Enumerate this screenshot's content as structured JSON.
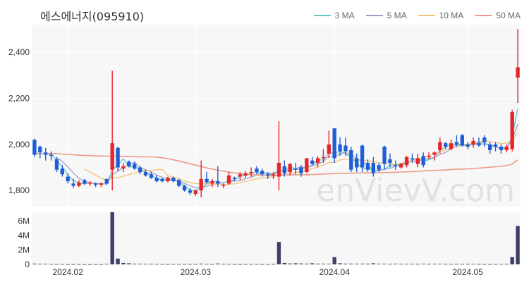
{
  "title": "에스에너지(095910)",
  "watermark": "enVievV.com",
  "legend": [
    {
      "label": "3 MA",
      "color": "#5ec8c8"
    },
    {
      "label": "5 MA",
      "color": "#a89ac8"
    },
    {
      "label": "10 MA",
      "color": "#f2c27a"
    },
    {
      "label": "50 MA",
      "color": "#ee9a86"
    }
  ],
  "colors": {
    "up": "#e8242b",
    "down": "#1e5fd6",
    "volume": "#3d3f66",
    "panel_bg": "#f7f7f7"
  },
  "chart_data": {
    "type": "candlestick",
    "price_axis": {
      "ticks": [
        1800,
        2000,
        2200,
        2400
      ],
      "tick_labels": [
        "1,800",
        "2,000",
        "2,200",
        "2,400"
      ],
      "ylim": [
        1730,
        2520
      ]
    },
    "volume_axis": {
      "ticks": [
        0,
        2000000,
        4000000,
        6000000
      ],
      "tick_labels": [
        "0",
        "2M",
        "4M",
        "6M"
      ],
      "ylim": [
        0,
        7300000
      ]
    },
    "x_axis": {
      "tick_labels": [
        "2024.02",
        "2024.03",
        "2024.04",
        "2024.05"
      ],
      "tick_index": [
        6,
        29,
        54,
        78
      ]
    },
    "candles": [
      [
        2020,
        2025,
        1945,
        1955
      ],
      [
        1990,
        1995,
        1940,
        1965
      ],
      [
        1965,
        1985,
        1930,
        1955
      ],
      [
        1955,
        1970,
        1930,
        1950
      ],
      [
        1935,
        1945,
        1880,
        1890
      ],
      [
        1895,
        1910,
        1860,
        1870
      ],
      [
        1860,
        1875,
        1830,
        1840
      ],
      [
        1830,
        1850,
        1810,
        1820
      ],
      [
        1820,
        1845,
        1815,
        1835
      ],
      [
        1845,
        1850,
        1825,
        1830
      ],
      [
        1830,
        1840,
        1820,
        1835
      ],
      [
        1830,
        1835,
        1815,
        1825
      ],
      [
        1825,
        1835,
        1815,
        1830
      ],
      [
        1850,
        1850,
        1825,
        1830
      ],
      [
        1890,
        2320,
        1800,
        2005
      ],
      [
        1985,
        1990,
        1885,
        1900
      ],
      [
        1895,
        1920,
        1880,
        1905
      ],
      [
        1925,
        1930,
        1900,
        1905
      ],
      [
        1915,
        1925,
        1890,
        1895
      ],
      [
        1900,
        1905,
        1870,
        1880
      ],
      [
        1880,
        1890,
        1860,
        1865
      ],
      [
        1870,
        1880,
        1850,
        1855
      ],
      [
        1855,
        1865,
        1835,
        1840
      ],
      [
        1850,
        1855,
        1835,
        1840
      ],
      [
        1840,
        1860,
        1835,
        1855
      ],
      [
        1855,
        1860,
        1835,
        1840
      ],
      [
        1845,
        1850,
        1815,
        1820
      ],
      [
        1820,
        1825,
        1795,
        1800
      ],
      [
        1800,
        1810,
        1780,
        1790
      ],
      [
        1785,
        1805,
        1775,
        1800
      ],
      [
        1800,
        1930,
        1770,
        1850
      ],
      [
        1850,
        1880,
        1830,
        1835
      ],
      [
        1830,
        1850,
        1815,
        1840
      ],
      [
        1840,
        1905,
        1815,
        1830
      ],
      [
        1820,
        1830,
        1810,
        1825
      ],
      [
        1830,
        1880,
        1825,
        1865
      ],
      [
        1855,
        1860,
        1840,
        1850
      ],
      [
        1860,
        1880,
        1845,
        1870
      ],
      [
        1865,
        1885,
        1855,
        1875
      ],
      [
        1875,
        1900,
        1860,
        1880
      ],
      [
        1895,
        1905,
        1870,
        1880
      ],
      [
        1885,
        1895,
        1860,
        1870
      ],
      [
        1870,
        1880,
        1850,
        1865
      ],
      [
        1865,
        1880,
        1850,
        1870
      ],
      [
        1860,
        2100,
        1800,
        1920
      ],
      [
        1905,
        1930,
        1860,
        1875
      ],
      [
        1880,
        1920,
        1865,
        1915
      ],
      [
        1895,
        1920,
        1870,
        1890
      ],
      [
        1900,
        1910,
        1860,
        1875
      ],
      [
        1880,
        1940,
        1875,
        1940
      ],
      [
        1930,
        1945,
        1910,
        1915
      ],
      [
        1920,
        1950,
        1900,
        1940
      ],
      [
        1940,
        1980,
        1920,
        1945
      ],
      [
        1960,
        2060,
        1940,
        2000
      ],
      [
        2070,
        2070,
        1920,
        1940
      ],
      [
        2000,
        2030,
        1950,
        1970
      ],
      [
        1995,
        2030,
        1950,
        1970
      ],
      [
        1975,
        1990,
        1880,
        1890
      ],
      [
        1940,
        1960,
        1880,
        1900
      ],
      [
        1995,
        2000,
        1880,
        1900
      ],
      [
        1920,
        1935,
        1880,
        1890
      ],
      [
        1920,
        1945,
        1860,
        1875
      ],
      [
        1910,
        1920,
        1880,
        1890
      ],
      [
        1990,
        1995,
        1890,
        1915
      ],
      [
        1935,
        1960,
        1900,
        1920
      ],
      [
        1910,
        1930,
        1890,
        1905
      ],
      [
        1900,
        1920,
        1895,
        1915
      ],
      [
        1910,
        1950,
        1900,
        1945
      ],
      [
        1940,
        1960,
        1920,
        1935
      ],
      [
        1915,
        1960,
        1900,
        1940
      ],
      [
        1950,
        1965,
        1900,
        1910
      ],
      [
        1945,
        1965,
        1935,
        1950
      ],
      [
        1955,
        1970,
        1930,
        1965
      ],
      [
        1975,
        2030,
        1960,
        2010
      ],
      [
        2005,
        2010,
        1980,
        1990
      ],
      [
        1980,
        2020,
        1975,
        2005
      ],
      [
        2010,
        2040,
        1990,
        2000
      ],
      [
        2040,
        2045,
        1990,
        1995
      ],
      [
        2000,
        2010,
        1980,
        1990
      ],
      [
        2000,
        2030,
        1985,
        2015
      ],
      [
        2005,
        2030,
        1990,
        1995
      ],
      [
        2030,
        2040,
        1990,
        2010
      ],
      [
        2000,
        2010,
        1960,
        1975
      ],
      [
        2000,
        2010,
        1970,
        1990
      ],
      [
        1990,
        2000,
        1960,
        1975
      ],
      [
        1975,
        2000,
        1965,
        1990
      ],
      [
        1980,
        2150,
        1970,
        2140
      ],
      [
        2290,
        2500,
        2180,
        2335
      ]
    ],
    "volume": [
      100000,
      70000,
      60000,
      50000,
      40000,
      40000,
      30000,
      30000,
      30000,
      20000,
      20000,
      20000,
      20000,
      60000,
      7200000,
      800000,
      200000,
      150000,
      90000,
      70000,
      60000,
      60000,
      50000,
      40000,
      40000,
      40000,
      40000,
      40000,
      50000,
      50000,
      100000,
      60000,
      40000,
      120000,
      50000,
      50000,
      30000,
      30000,
      40000,
      40000,
      40000,
      30000,
      30000,
      40000,
      3100000,
      200000,
      120000,
      150000,
      120000,
      90000,
      150000,
      90000,
      80000,
      80000,
      1000000,
      150000,
      100000,
      90000,
      80000,
      90000,
      80000,
      150000,
      80000,
      80000,
      60000,
      80000,
      60000,
      70000,
      60000,
      60000,
      80000,
      60000,
      70000,
      70000,
      50000,
      50000,
      50000,
      50000,
      60000,
      60000,
      40000,
      40000,
      40000,
      40000,
      50000,
      50000,
      1000000,
      5300000
    ],
    "ma_lines": [
      {
        "label": "3 MA",
        "values": [
          null,
          null,
          1958,
          1957,
          1932,
          1903,
          1867,
          1843,
          1832,
          1828,
          1833,
          1830,
          1830,
          1828,
          1888,
          1912,
          1937,
          1903,
          1902,
          1893,
          1880,
          1867,
          1853,
          1845,
          1845,
          1845,
          1838,
          1820,
          1803,
          1797,
          1813,
          1828,
          1842,
          1835,
          1833,
          1840,
          1847,
          1862,
          1865,
          1875,
          1878,
          1877,
          1872,
          1868,
          1885,
          1888,
          1903,
          1893,
          1893,
          1902,
          1910,
          1932,
          1933,
          1962,
          1962,
          1970,
          1960,
          1943,
          1920,
          1897,
          1897,
          1888,
          1885,
          1893,
          1908,
          1913,
          1913,
          1922,
          1932,
          1940,
          1928,
          1933,
          1942,
          1975,
          1988,
          2002,
          1998,
          1997,
          1995,
          2000,
          2007,
          2007,
          1993,
          1992,
          1980,
          1985,
          2035,
          2155
        ]
      },
      {
        "label": "5 MA",
        "values": [
          null,
          null,
          null,
          null,
          1943,
          1926,
          1903,
          1875,
          1853,
          1839,
          1832,
          1829,
          1829,
          1829,
          1869,
          1884,
          1899,
          1913,
          1922,
          1900,
          1890,
          1880,
          1867,
          1857,
          1851,
          1847,
          1842,
          1831,
          1821,
          1812,
          1812,
          1819,
          1825,
          1831,
          1833,
          1839,
          1841,
          1842,
          1852,
          1858,
          1867,
          1875,
          1875,
          1874,
          1885,
          1885,
          1889,
          1895,
          1903,
          1898,
          1907,
          1914,
          1926,
          1948,
          1948,
          1959,
          1965,
          1955,
          1938,
          1926,
          1910,
          1887,
          1887,
          1892,
          1896,
          1905,
          1910,
          1918,
          1928,
          1926,
          1933,
          1940,
          1943,
          1956,
          1965,
          1982,
          1998,
          2002,
          1998,
          1998,
          2003,
          2001,
          1999,
          1990,
          1984,
          1987,
          2020,
          2088
        ]
      },
      {
        "label": "10 MA",
        "values": [
          null,
          null,
          null,
          null,
          null,
          null,
          null,
          null,
          null,
          1893,
          1880,
          1866,
          1854,
          1842,
          1854,
          1855,
          1862,
          1869,
          1875,
          1880,
          1885,
          1887,
          1890,
          1891,
          1864,
          1858,
          1851,
          1841,
          1834,
          1830,
          1829,
          1829,
          1828,
          1827,
          1825,
          1827,
          1829,
          1833,
          1840,
          1846,
          1850,
          1854,
          1857,
          1859,
          1869,
          1872,
          1876,
          1879,
          1880,
          1886,
          1895,
          1902,
          1910,
          1922,
          1922,
          1932,
          1937,
          1934,
          1935,
          1931,
          1928,
          1925,
          1920,
          1917,
          1915,
          1913,
          1918,
          1925,
          1930,
          1935,
          1942,
          1951,
          1958,
          1968,
          1976,
          1984,
          1990,
          1997,
          2001,
          2006,
          2011,
          2012,
          2011,
          2009,
          2003,
          2006,
          2020,
          2050
        ]
      },
      {
        "label": "50 MA",
        "values": [
          1960,
          1960,
          1960,
          1960,
          1960,
          1958,
          1957,
          1955,
          1953,
          1952,
          1951,
          1950,
          1950,
          1949,
          1949,
          1949,
          1948,
          1947,
          1947,
          1946,
          1946,
          1946,
          1945,
          1942,
          1938,
          1933,
          1928,
          1922,
          1916,
          1910,
          1904,
          1898,
          1893,
          1888,
          1884,
          1880,
          1876,
          1873,
          1870,
          1868,
          1867,
          1866,
          1865,
          1865,
          1866,
          1867,
          1868,
          1868,
          1868,
          1868,
          1869,
          1870,
          1871,
          1872,
          1873,
          1874,
          1874,
          1875,
          1875,
          1876,
          1876,
          1877,
          1877,
          1878,
          1878,
          1879,
          1880,
          1881,
          1882,
          1883,
          1885,
          1886,
          1887,
          1888,
          1889,
          1891,
          1892,
          1893,
          1894,
          1895,
          1897,
          1899,
          1901,
          1903,
          1905,
          1908,
          1915,
          1933
        ]
      }
    ]
  }
}
